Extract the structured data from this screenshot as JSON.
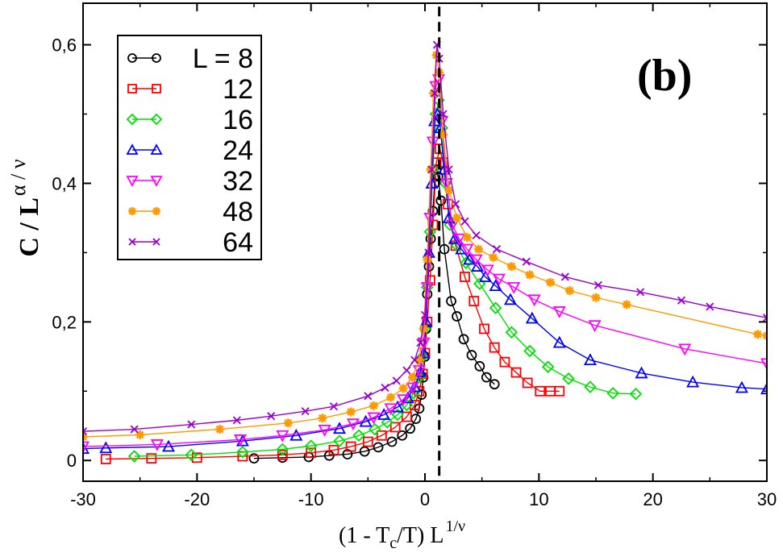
{
  "chart_data": {
    "type": "line",
    "panel_label": "(b)",
    "ylabel": {
      "main": "C / L",
      "sup": "α / ν"
    },
    "xlabel": {
      "part1": "(1 - T",
      "sub": "c",
      "part2": "/T)  L",
      "sup": "1/ν"
    },
    "xlim": [
      -30,
      30
    ],
    "ylim": [
      -0.03,
      0.66
    ],
    "x_ticks": [
      -30,
      -20,
      -10,
      0,
      10,
      20,
      30
    ],
    "x_tick_labels": [
      "-30",
      "-20",
      "-10",
      "0",
      "10",
      "20",
      "30"
    ],
    "y_ticks": [
      0,
      0.2,
      0.4,
      0.6
    ],
    "y_tick_labels": [
      "0",
      "0,2",
      "0,4",
      "0,6"
    ],
    "vline_x": 1.25,
    "legend_prefix": "L = ",
    "series": [
      {
        "name": "8",
        "color": "#000000",
        "marker": "circle",
        "x": [
          -15,
          -12.5,
          -10.2,
          -8.4,
          -6.8,
          -5.3,
          -4.1,
          -2.9,
          -2.0,
          -1.3,
          -0.8,
          -0.5,
          -0.3,
          -0.15,
          0.0,
          0.1,
          0.2,
          0.35,
          0.5,
          0.7,
          0.85,
          1.0,
          1.15,
          1.4,
          1.7,
          2.3,
          2.8,
          3.4,
          4.1,
          4.8,
          5.4,
          6.1
        ],
        "y": [
          0.003,
          0.004,
          0.005,
          0.007,
          0.009,
          0.013,
          0.019,
          0.027,
          0.036,
          0.046,
          0.06,
          0.075,
          0.095,
          0.12,
          0.15,
          0.19,
          0.24,
          0.28,
          0.32,
          0.36,
          0.4,
          0.42,
          0.41,
          0.375,
          0.305,
          0.23,
          0.208,
          0.175,
          0.152,
          0.136,
          0.12,
          0.11
        ]
      },
      {
        "name": "12",
        "color": "#ff0000",
        "marker": "square",
        "x": [
          -28,
          -24,
          -20,
          -16,
          -12.5,
          -10,
          -8,
          -6.5,
          -5,
          -3.8,
          -2.6,
          -1.6,
          -0.9,
          -0.5,
          -0.2,
          0.0,
          0.2,
          0.45,
          0.7,
          1.0,
          1.3,
          1.6,
          2.0,
          2.7,
          3.5,
          4.3,
          5.2,
          6.1,
          7.0,
          8.0,
          9.0,
          10.1,
          11.0,
          11.8
        ],
        "y": [
          0.002,
          0.003,
          0.004,
          0.006,
          0.008,
          0.011,
          0.015,
          0.02,
          0.027,
          0.036,
          0.048,
          0.063,
          0.08,
          0.1,
          0.125,
          0.155,
          0.2,
          0.26,
          0.34,
          0.43,
          0.45,
          0.43,
          0.37,
          0.31,
          0.265,
          0.23,
          0.19,
          0.163,
          0.142,
          0.127,
          0.112,
          0.1,
          0.1,
          0.1
        ]
      },
      {
        "name": "16",
        "color": "#00e000",
        "marker": "diamond",
        "x": [
          -25.5,
          -20.5,
          -16,
          -12.5,
          -10,
          -7.5,
          -5.8,
          -4.4,
          -3.3,
          -2.4,
          -1.6,
          -1.0,
          -0.5,
          -0.2,
          0.0,
          0.2,
          0.45,
          0.7,
          0.95,
          1.2,
          1.5,
          1.8,
          2.2,
          2.8,
          3.6,
          4.8,
          6.2,
          7.6,
          9.2,
          10.8,
          12.6,
          14.5,
          16.5,
          18.5
        ],
        "y": [
          0.006,
          0.008,
          0.012,
          0.016,
          0.021,
          0.028,
          0.036,
          0.045,
          0.055,
          0.066,
          0.08,
          0.097,
          0.12,
          0.15,
          0.19,
          0.25,
          0.33,
          0.42,
          0.5,
          0.52,
          0.48,
          0.4,
          0.34,
          0.31,
          0.285,
          0.255,
          0.22,
          0.185,
          0.158,
          0.135,
          0.118,
          0.106,
          0.097,
          0.096
        ]
      },
      {
        "name": "24",
        "color": "#0000ff",
        "marker": "triangle-up",
        "x": [
          -30,
          -28,
          -22.5,
          -16,
          -11.3,
          -7.5,
          -5.2,
          -3.6,
          -2.4,
          -1.5,
          -0.9,
          -0.4,
          -0.1,
          0.1,
          0.35,
          0.6,
          0.85,
          1.1,
          1.35,
          1.7,
          2.1,
          2.6,
          3.2,
          3.9,
          4.6,
          5.3,
          6.2,
          7.5,
          9.4,
          11.8,
          14.5,
          19.0,
          23.5,
          27.8,
          30
        ],
        "y": [
          0.017,
          0.018,
          0.02,
          0.028,
          0.036,
          0.046,
          0.056,
          0.066,
          0.077,
          0.09,
          0.106,
          0.128,
          0.155,
          0.2,
          0.3,
          0.4,
          0.49,
          0.5,
          0.48,
          0.42,
          0.35,
          0.32,
          0.305,
          0.29,
          0.28,
          0.265,
          0.252,
          0.232,
          0.205,
          0.17,
          0.145,
          0.126,
          0.113,
          0.105,
          0.103
        ]
      },
      {
        "name": "32",
        "color": "#ff00ff",
        "marker": "triangle-down",
        "x": [
          -30,
          -23.5,
          -16.2,
          -12.5,
          -8.8,
          -6.3,
          -4.5,
          -3.0,
          -1.9,
          -1.1,
          -0.5,
          -0.1,
          0.2,
          0.45,
          0.7,
          0.95,
          1.2,
          1.5,
          1.9,
          2.4,
          3.0,
          3.7,
          4.5,
          5.5,
          6.5,
          7.8,
          9.6,
          11.8,
          14.9,
          22.8,
          30
        ],
        "y": [
          0.02,
          0.023,
          0.03,
          0.036,
          0.044,
          0.053,
          0.062,
          0.075,
          0.088,
          0.105,
          0.13,
          0.17,
          0.25,
          0.35,
          0.46,
          0.54,
          0.55,
          0.49,
          0.4,
          0.34,
          0.32,
          0.305,
          0.29,
          0.275,
          0.262,
          0.25,
          0.232,
          0.215,
          0.195,
          0.161,
          0.14
        ]
      },
      {
        "name": "48",
        "color": "#ff9900",
        "marker": "star",
        "x": [
          -30,
          -25,
          -18,
          -12,
          -9,
          -6.5,
          -4.5,
          -3.0,
          -1.9,
          -1.1,
          -0.5,
          -0.1,
          0.2,
          0.5,
          0.75,
          1.0,
          1.25,
          1.6,
          2.1,
          2.8,
          3.7,
          4.7,
          6.0,
          7.6,
          9.2,
          11.0,
          12.7,
          15.0,
          17.7,
          29.2,
          30
        ],
        "y": [
          0.034,
          0.037,
          0.045,
          0.054,
          0.061,
          0.07,
          0.079,
          0.091,
          0.104,
          0.12,
          0.145,
          0.19,
          0.29,
          0.42,
          0.53,
          0.585,
          0.56,
          0.47,
          0.39,
          0.35,
          0.322,
          0.305,
          0.293,
          0.28,
          0.268,
          0.257,
          0.245,
          0.235,
          0.225,
          0.182,
          0.18
        ]
      },
      {
        "name": "64",
        "color": "#9900cc",
        "marker": "x",
        "x": [
          -30,
          -25.5,
          -20.5,
          -16.5,
          -13.5,
          -10.5,
          -8,
          -5,
          -3.5,
          -2.5,
          -1.6,
          -0.9,
          -0.4,
          0.0,
          0.3,
          0.6,
          0.85,
          1.05,
          1.25,
          1.6,
          2.1,
          2.7,
          3.5,
          4.5,
          6.3,
          8.9,
          12.3,
          15.2,
          18.9,
          22.5,
          25,
          30
        ],
        "y": [
          0.042,
          0.045,
          0.052,
          0.058,
          0.064,
          0.071,
          0.078,
          0.093,
          0.105,
          0.115,
          0.13,
          0.145,
          0.17,
          0.21,
          0.3,
          0.42,
          0.53,
          0.6,
          0.58,
          0.5,
          0.42,
          0.37,
          0.345,
          0.325,
          0.305,
          0.287,
          0.265,
          0.253,
          0.243,
          0.231,
          0.222,
          0.206
        ]
      }
    ]
  }
}
